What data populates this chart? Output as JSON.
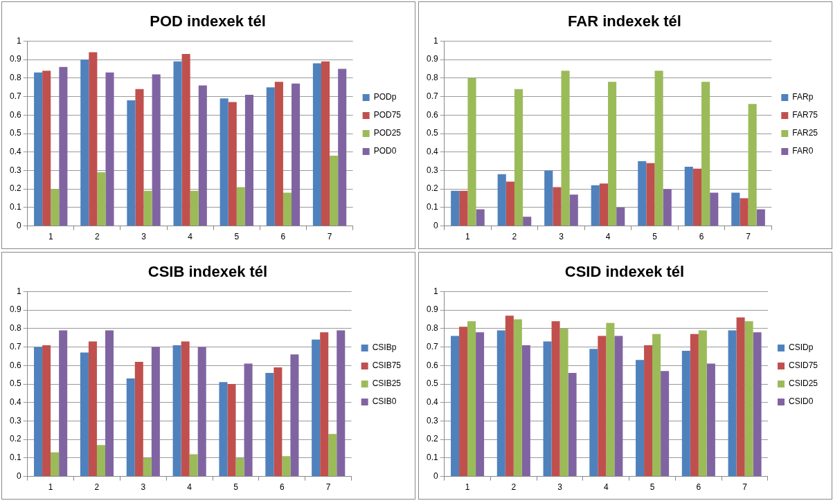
{
  "chart_data": [
    {
      "type": "bar",
      "title": "POD indexek tél",
      "categories": [
        "1",
        "2",
        "3",
        "4",
        "5",
        "6",
        "7"
      ],
      "ylim": [
        0,
        1
      ],
      "yticks": [
        0,
        0.1,
        0.2,
        0.3,
        0.4,
        0.5,
        0.6,
        0.7,
        0.8,
        0.9,
        1
      ],
      "grid": "y",
      "legend": "right",
      "series": [
        {
          "name": "PODp",
          "color": "#4f81bd",
          "values": [
            0.83,
            0.9,
            0.68,
            0.89,
            0.69,
            0.75,
            0.88
          ]
        },
        {
          "name": "POD75",
          "color": "#c0504d",
          "values": [
            0.84,
            0.94,
            0.74,
            0.93,
            0.67,
            0.78,
            0.89
          ]
        },
        {
          "name": "POD25",
          "color": "#9bbb59",
          "values": [
            0.2,
            0.29,
            0.19,
            0.19,
            0.21,
            0.18,
            0.38
          ]
        },
        {
          "name": "POD0",
          "color": "#8064a2",
          "values": [
            0.86,
            0.83,
            0.82,
            0.76,
            0.71,
            0.77,
            0.85
          ]
        }
      ]
    },
    {
      "type": "bar",
      "title": "FAR indexek tél",
      "categories": [
        "1",
        "2",
        "3",
        "4",
        "5",
        "6",
        "7"
      ],
      "ylim": [
        0,
        1
      ],
      "yticks": [
        0,
        0.1,
        0.2,
        0.3,
        0.4,
        0.5,
        0.6,
        0.7,
        0.8,
        0.9,
        1
      ],
      "grid": "y",
      "legend": "right",
      "series": [
        {
          "name": "FARp",
          "color": "#4f81bd",
          "values": [
            0.19,
            0.28,
            0.3,
            0.22,
            0.35,
            0.32,
            0.18
          ]
        },
        {
          "name": "FAR75",
          "color": "#c0504d",
          "values": [
            0.19,
            0.24,
            0.21,
            0.23,
            0.34,
            0.31,
            0.15
          ]
        },
        {
          "name": "FAR25",
          "color": "#9bbb59",
          "values": [
            0.8,
            0.74,
            0.84,
            0.78,
            0.84,
            0.78,
            0.66
          ]
        },
        {
          "name": "FAR0",
          "color": "#8064a2",
          "values": [
            0.09,
            0.05,
            0.17,
            0.1,
            0.2,
            0.18,
            0.09
          ]
        }
      ]
    },
    {
      "type": "bar",
      "title": "CSIB indexek tél",
      "categories": [
        "1",
        "2",
        "3",
        "4",
        "5",
        "6",
        "7"
      ],
      "ylim": [
        0,
        1
      ],
      "yticks": [
        0,
        0.1,
        0.2,
        0.3,
        0.4,
        0.5,
        0.6,
        0.7,
        0.8,
        0.9,
        1
      ],
      "grid": "y",
      "legend": "right",
      "series": [
        {
          "name": "CSIBp",
          "color": "#4f81bd",
          "values": [
            0.7,
            0.67,
            0.53,
            0.71,
            0.51,
            0.56,
            0.74
          ]
        },
        {
          "name": "CSIB75",
          "color": "#c0504d",
          "values": [
            0.71,
            0.73,
            0.62,
            0.73,
            0.5,
            0.59,
            0.78
          ]
        },
        {
          "name": "CSIB25",
          "color": "#9bbb59",
          "values": [
            0.13,
            0.17,
            0.1,
            0.12,
            0.1,
            0.11,
            0.23
          ]
        },
        {
          "name": "CSIB0",
          "color": "#8064a2",
          "values": [
            0.79,
            0.79,
            0.7,
            0.7,
            0.61,
            0.66,
            0.79
          ]
        }
      ]
    },
    {
      "type": "bar",
      "title": "CSID indexek tél",
      "categories": [
        "1",
        "2",
        "3",
        "4",
        "5",
        "6",
        "7"
      ],
      "ylim": [
        0,
        1
      ],
      "yticks": [
        0,
        0.1,
        0.2,
        0.3,
        0.4,
        0.5,
        0.6,
        0.7,
        0.8,
        0.9,
        1
      ],
      "grid": "y",
      "legend": "right",
      "series": [
        {
          "name": "CSIDp",
          "color": "#4f81bd",
          "values": [
            0.76,
            0.79,
            0.73,
            0.69,
            0.63,
            0.68,
            0.79
          ]
        },
        {
          "name": "CSID75",
          "color": "#c0504d",
          "values": [
            0.81,
            0.87,
            0.84,
            0.76,
            0.71,
            0.77,
            0.86
          ]
        },
        {
          "name": "CSID25",
          "color": "#9bbb59",
          "values": [
            0.84,
            0.85,
            0.8,
            0.83,
            0.77,
            0.79,
            0.84
          ]
        },
        {
          "name": "CSID0",
          "color": "#8064a2",
          "values": [
            0.78,
            0.71,
            0.56,
            0.76,
            0.57,
            0.61,
            0.78
          ]
        }
      ]
    }
  ]
}
